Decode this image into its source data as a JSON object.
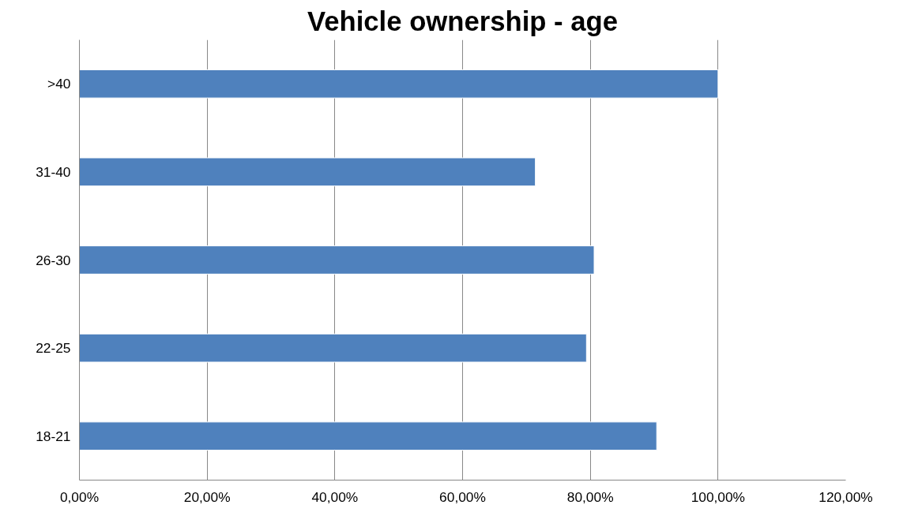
{
  "chart_data": {
    "type": "bar",
    "orientation": "horizontal",
    "title": "Vehicle ownership - age",
    "categories": [
      ">40",
      "31-40",
      "26-30",
      "22-25",
      "18-21"
    ],
    "values": [
      100,
      71.4,
      80.6,
      79.4,
      90.4
    ],
    "color": "#4f81bd",
    "xlim": [
      0,
      120
    ],
    "xticks": [
      {
        "value": 0,
        "label": "0,00%"
      },
      {
        "value": 20,
        "label": "20,00%"
      },
      {
        "value": 40,
        "label": "40,00%"
      },
      {
        "value": 60,
        "label": "60,00%"
      },
      {
        "value": 80,
        "label": "80,00%"
      },
      {
        "value": 100,
        "label": "100,00%"
      },
      {
        "value": 120,
        "label": "120,00%"
      }
    ],
    "grid": "x"
  }
}
